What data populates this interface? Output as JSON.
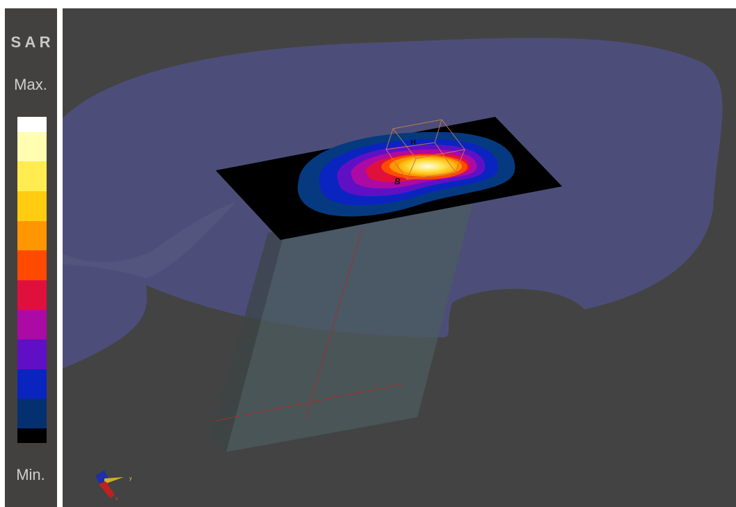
{
  "sidebar": {
    "title": "S A R",
    "max_label": "Max.",
    "min_label": "Min."
  },
  "viewport": {
    "probe_labels": [
      "H",
      "B"
    ],
    "axis_labels": [
      "y",
      "x"
    ]
  }
}
